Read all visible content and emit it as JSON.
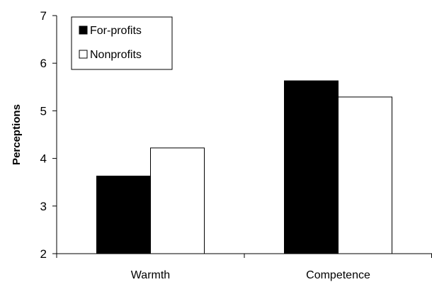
{
  "chart_data": {
    "type": "bar",
    "categories": [
      "Warmth",
      "Competence"
    ],
    "series": [
      {
        "name": "For-profits",
        "values": [
          3.63,
          5.63
        ],
        "color": "#000000"
      },
      {
        "name": "Nonprofits",
        "values": [
          4.22,
          5.29
        ],
        "color": "#ffffff"
      }
    ],
    "title": "",
    "xlabel": "",
    "ylabel": "Perceptions",
    "ylim": [
      2,
      7
    ],
    "yticks": [
      2,
      3,
      4,
      5,
      6,
      7
    ],
    "grid": false,
    "legend_position": "top-left"
  }
}
